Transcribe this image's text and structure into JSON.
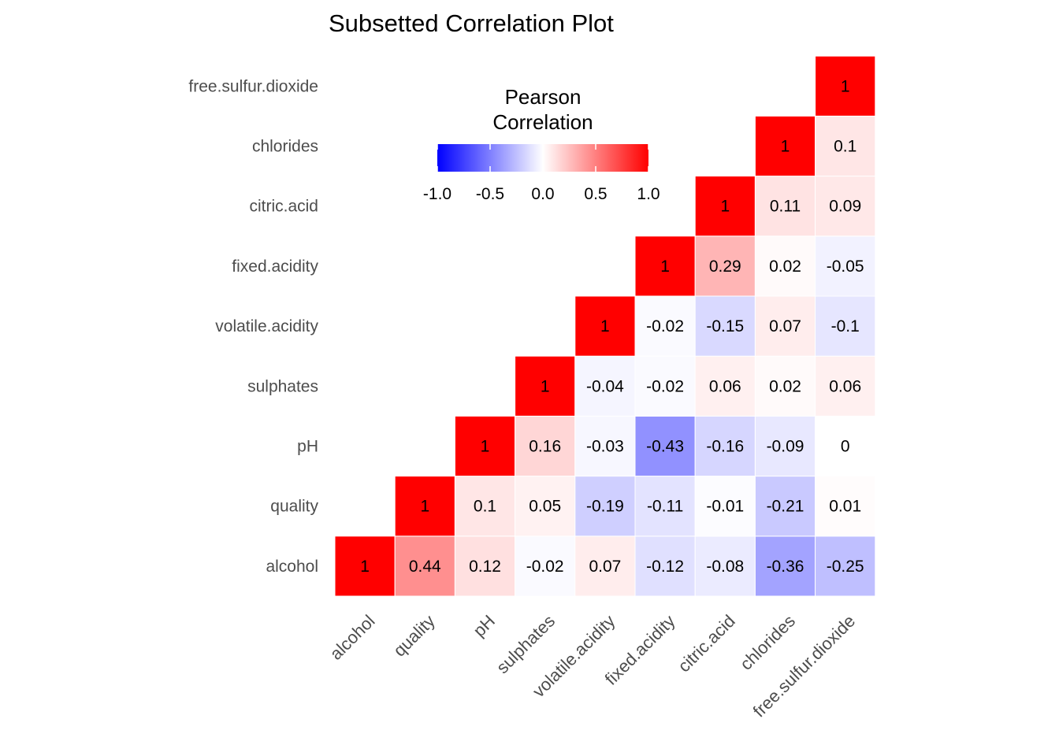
{
  "chart_data": {
    "type": "heatmap",
    "title": "Subsetted Correlation Plot",
    "variables": [
      "alcohol",
      "quality",
      "pH",
      "sulphates",
      "volatile.acidity",
      "fixed.acidity",
      "citric.acid",
      "chlorides",
      "free.sulfur.dioxide"
    ],
    "x_tick_labels": [
      "alcohol",
      "quality",
      "pH",
      "sulphates",
      "volatile.acidity",
      "fixed.acidity",
      "citric.acid",
      "chlorides",
      "free.sulfur.dioxide"
    ],
    "y_tick_labels": [
      "alcohol",
      "quality",
      "pH",
      "sulphates",
      "volatile.acidity",
      "fixed.acidity",
      "citric.acid",
      "chlorides",
      "free.sulfur.dioxide"
    ],
    "cells": [
      {
        "x": "alcohol",
        "y": "alcohol",
        "value": 1,
        "label": "1"
      },
      {
        "x": "quality",
        "y": "alcohol",
        "value": 0.44,
        "label": "0.44"
      },
      {
        "x": "pH",
        "y": "alcohol",
        "value": 0.12,
        "label": "0.12"
      },
      {
        "x": "sulphates",
        "y": "alcohol",
        "value": -0.02,
        "label": "-0.02"
      },
      {
        "x": "volatile.acidity",
        "y": "alcohol",
        "value": 0.07,
        "label": "0.07"
      },
      {
        "x": "fixed.acidity",
        "y": "alcohol",
        "value": -0.12,
        "label": "-0.12"
      },
      {
        "x": "citric.acid",
        "y": "alcohol",
        "value": -0.08,
        "label": "-0.08"
      },
      {
        "x": "chlorides",
        "y": "alcohol",
        "value": -0.36,
        "label": "-0.36"
      },
      {
        "x": "free.sulfur.dioxide",
        "y": "alcohol",
        "value": -0.25,
        "label": "-0.25"
      },
      {
        "x": "quality",
        "y": "quality",
        "value": 1,
        "label": "1"
      },
      {
        "x": "pH",
        "y": "quality",
        "value": 0.1,
        "label": "0.1"
      },
      {
        "x": "sulphates",
        "y": "quality",
        "value": 0.05,
        "label": "0.05"
      },
      {
        "x": "volatile.acidity",
        "y": "quality",
        "value": -0.19,
        "label": "-0.19"
      },
      {
        "x": "fixed.acidity",
        "y": "quality",
        "value": -0.11,
        "label": "-0.11"
      },
      {
        "x": "citric.acid",
        "y": "quality",
        "value": -0.01,
        "label": "-0.01"
      },
      {
        "x": "chlorides",
        "y": "quality",
        "value": -0.21,
        "label": "-0.21"
      },
      {
        "x": "free.sulfur.dioxide",
        "y": "quality",
        "value": 0.01,
        "label": "0.01"
      },
      {
        "x": "pH",
        "y": "pH",
        "value": 1,
        "label": "1"
      },
      {
        "x": "sulphates",
        "y": "pH",
        "value": 0.16,
        "label": "0.16"
      },
      {
        "x": "volatile.acidity",
        "y": "pH",
        "value": -0.03,
        "label": "-0.03"
      },
      {
        "x": "fixed.acidity",
        "y": "pH",
        "value": -0.43,
        "label": "-0.43"
      },
      {
        "x": "citric.acid",
        "y": "pH",
        "value": -0.16,
        "label": "-0.16"
      },
      {
        "x": "chlorides",
        "y": "pH",
        "value": -0.09,
        "label": "-0.09"
      },
      {
        "x": "free.sulfur.dioxide",
        "y": "pH",
        "value": 0,
        "label": "0"
      },
      {
        "x": "sulphates",
        "y": "sulphates",
        "value": 1,
        "label": "1"
      },
      {
        "x": "volatile.acidity",
        "y": "sulphates",
        "value": -0.04,
        "label": "-0.04"
      },
      {
        "x": "fixed.acidity",
        "y": "sulphates",
        "value": -0.02,
        "label": "-0.02"
      },
      {
        "x": "citric.acid",
        "y": "sulphates",
        "value": 0.06,
        "label": "0.06"
      },
      {
        "x": "chlorides",
        "y": "sulphates",
        "value": 0.02,
        "label": "0.02"
      },
      {
        "x": "free.sulfur.dioxide",
        "y": "sulphates",
        "value": 0.06,
        "label": "0.06"
      },
      {
        "x": "volatile.acidity",
        "y": "volatile.acidity",
        "value": 1,
        "label": "1"
      },
      {
        "x": "fixed.acidity",
        "y": "volatile.acidity",
        "value": -0.02,
        "label": "-0.02"
      },
      {
        "x": "citric.acid",
        "y": "volatile.acidity",
        "value": -0.15,
        "label": "-0.15"
      },
      {
        "x": "chlorides",
        "y": "volatile.acidity",
        "value": 0.07,
        "label": "0.07"
      },
      {
        "x": "free.sulfur.dioxide",
        "y": "volatile.acidity",
        "value": -0.1,
        "label": "-0.1"
      },
      {
        "x": "fixed.acidity",
        "y": "fixed.acidity",
        "value": 1,
        "label": "1"
      },
      {
        "x": "citric.acid",
        "y": "fixed.acidity",
        "value": 0.29,
        "label": "0.29"
      },
      {
        "x": "chlorides",
        "y": "fixed.acidity",
        "value": 0.02,
        "label": "0.02"
      },
      {
        "x": "free.sulfur.dioxide",
        "y": "fixed.acidity",
        "value": -0.05,
        "label": "-0.05"
      },
      {
        "x": "citric.acid",
        "y": "citric.acid",
        "value": 1,
        "label": "1"
      },
      {
        "x": "chlorides",
        "y": "citric.acid",
        "value": 0.11,
        "label": "0.11"
      },
      {
        "x": "free.sulfur.dioxide",
        "y": "citric.acid",
        "value": 0.09,
        "label": "0.09"
      },
      {
        "x": "chlorides",
        "y": "chlorides",
        "value": 1,
        "label": "1"
      },
      {
        "x": "free.sulfur.dioxide",
        "y": "chlorides",
        "value": 0.1,
        "label": "0.1"
      },
      {
        "x": "free.sulfur.dioxide",
        "y": "free.sulfur.dioxide",
        "value": 1,
        "label": "1"
      }
    ],
    "legend": {
      "title": [
        "Pearson",
        "Correlation"
      ],
      "ticks": [
        -1.0,
        -0.5,
        0.0,
        0.5,
        1.0
      ],
      "tick_labels": [
        "-1.0",
        "-0.5",
        "0.0",
        "0.5",
        "1.0"
      ],
      "range": [
        -1,
        1
      ],
      "colors": {
        "low": "#0000ff",
        "mid": "#ffffff",
        "high": "#ff0000"
      },
      "placement": "top-center"
    },
    "grid": false
  }
}
